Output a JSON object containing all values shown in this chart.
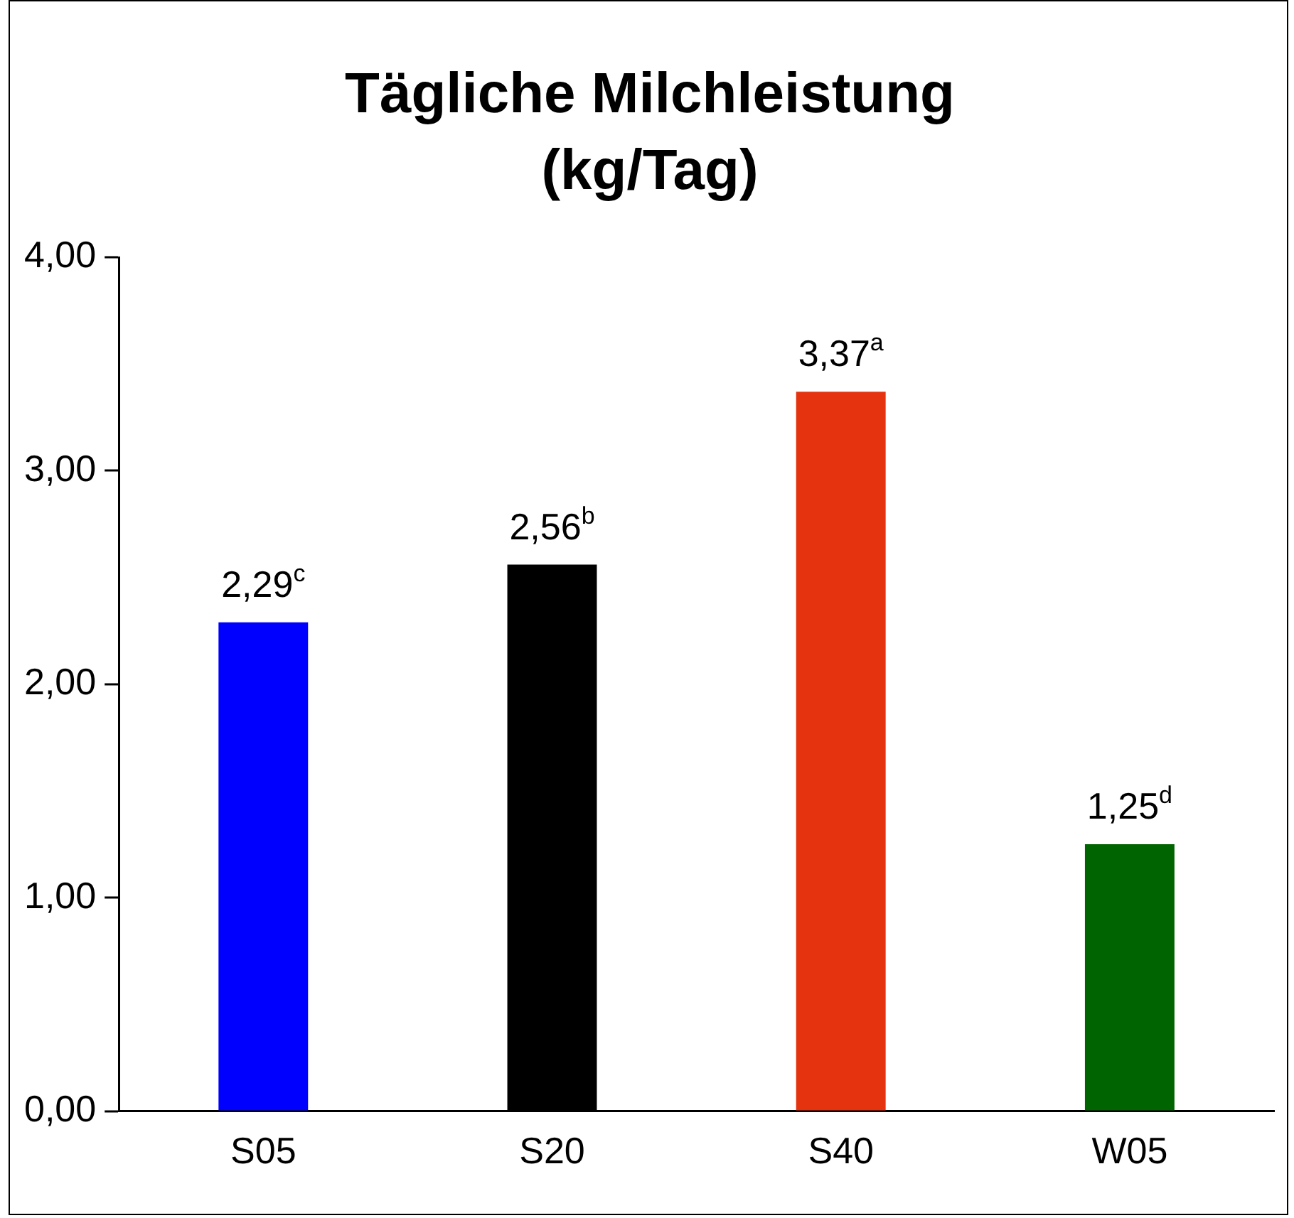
{
  "chart_data": {
    "type": "bar",
    "title": "Tägliche Milchleistung (kg/Tag)",
    "categories": [
      "S05",
      "S20",
      "S40",
      "W05"
    ],
    "values": [
      2.29,
      2.56,
      3.37,
      1.25
    ],
    "colors": [
      "#0000ff",
      "#000000",
      "#e5330f",
      "#006400"
    ],
    "value_labels": [
      "2,29$^{c}$",
      "2,56$^{b}$",
      "3,37$^{a}$",
      "1,25$^{d}$"
    ],
    "ylim": [
      0,
      4
    ],
    "yticks": [
      {
        "value": 0,
        "label": "0,00"
      },
      {
        "value": 1,
        "label": "1,00"
      },
      {
        "value": 2,
        "label": "2,00"
      },
      {
        "value": 3,
        "label": "3,00"
      },
      {
        "value": 4,
        "label": "4,00"
      }
    ],
    "grid": false,
    "legend": false
  }
}
